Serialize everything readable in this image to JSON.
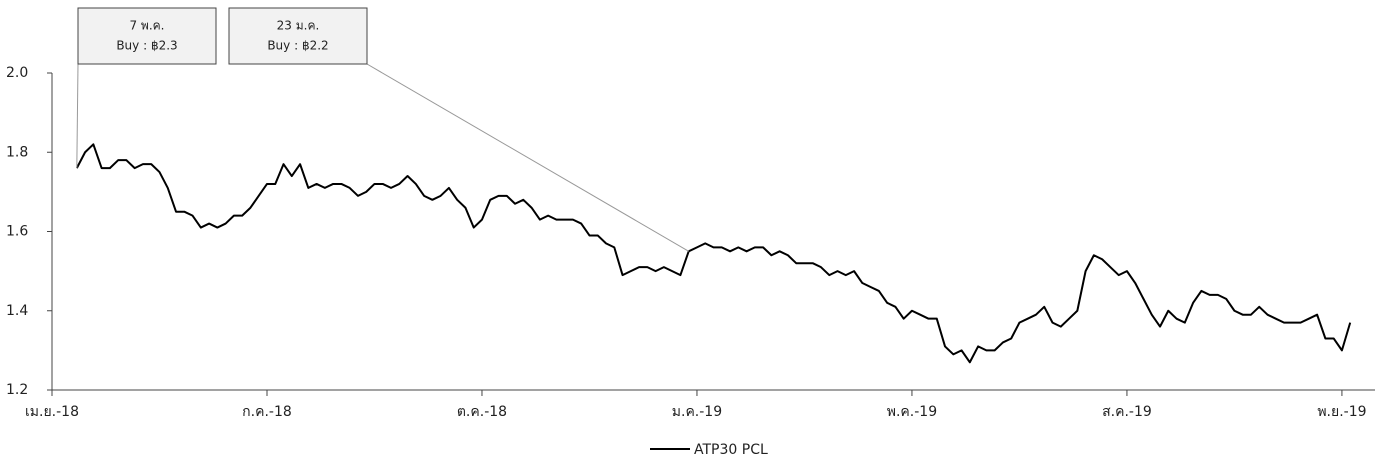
{
  "chart_data": {
    "type": "line",
    "categories": [
      "เม.ย.-18",
      null,
      null,
      null,
      null,
      null,
      null,
      null,
      null,
      null,
      null,
      null,
      null,
      null,
      null,
      null,
      null,
      null,
      null,
      null,
      null,
      null,
      null,
      null,
      null,
      null,
      "ก.ค.-18",
      null,
      null,
      null,
      null,
      null,
      null,
      null,
      null,
      null,
      null,
      null,
      null,
      null,
      null,
      null,
      null,
      null,
      null,
      null,
      null,
      null,
      null,
      null,
      null,
      null,
      "ต.ค.-18",
      null,
      null,
      null,
      null,
      null,
      null,
      null,
      null,
      null,
      null,
      null,
      null,
      null,
      null,
      null,
      null,
      null,
      null,
      null,
      null,
      null,
      null,
      null,
      null,
      null,
      "ม.ค.-19",
      null,
      null,
      null,
      null,
      null,
      null,
      null,
      null,
      null,
      null,
      null,
      null,
      null,
      null,
      null,
      null,
      null,
      null,
      null,
      null,
      null,
      null,
      null,
      null,
      null,
      "พ.ค.-19",
      null,
      null,
      null,
      null,
      null,
      null,
      null,
      null,
      null,
      null,
      null,
      null,
      null,
      null,
      null,
      null,
      null,
      null,
      null,
      null,
      null,
      null,
      null,
      null,
      null,
      "ส.ค.-19",
      null,
      null,
      null,
      null,
      null,
      null,
      null,
      null,
      null,
      null,
      null,
      null,
      null,
      null,
      null,
      null,
      null,
      null,
      null,
      null,
      null,
      null,
      null,
      null,
      null,
      "พ.ย.-19",
      null,
      null,
      null,
      null
    ],
    "series": [
      {
        "name": "ATP30 PCL",
        "color": "#000000",
        "values": [
          null,
          null,
          null,
          1.76,
          1.8,
          1.82,
          1.76,
          1.76,
          1.78,
          1.78,
          1.76,
          1.77,
          1.77,
          1.75,
          1.71,
          1.65,
          1.65,
          1.64,
          1.61,
          1.62,
          1.61,
          1.62,
          1.64,
          1.64,
          1.66,
          1.69,
          1.72,
          1.72,
          1.77,
          1.74,
          1.77,
          1.71,
          1.72,
          1.71,
          1.72,
          1.72,
          1.71,
          1.69,
          1.7,
          1.72,
          1.72,
          1.71,
          1.72,
          1.74,
          1.72,
          1.69,
          1.68,
          1.69,
          1.71,
          1.68,
          1.66,
          1.61,
          1.63,
          1.68,
          1.69,
          1.69,
          1.67,
          1.68,
          1.66,
          1.63,
          1.64,
          1.63,
          1.63,
          1.63,
          1.62,
          1.59,
          1.59,
          1.57,
          1.56,
          1.49,
          1.5,
          1.51,
          1.51,
          1.5,
          1.51,
          1.5,
          1.49,
          1.55,
          1.56,
          1.57,
          1.56,
          1.56,
          1.55,
          1.56,
          1.55,
          1.56,
          1.56,
          1.54,
          1.55,
          1.54,
          1.52,
          1.52,
          1.52,
          1.51,
          1.49,
          1.5,
          1.49,
          1.5,
          1.47,
          1.46,
          1.45,
          1.42,
          1.41,
          1.38,
          1.4,
          1.39,
          1.38,
          1.38,
          1.31,
          1.29,
          1.3,
          1.27,
          1.31,
          1.3,
          1.3,
          1.32,
          1.33,
          1.37,
          1.38,
          1.39,
          1.41,
          1.37,
          1.36,
          1.38,
          1.4,
          1.5,
          1.54,
          1.53,
          1.51,
          1.49,
          1.5,
          1.47,
          1.43,
          1.39,
          1.36,
          1.4,
          1.38,
          1.37,
          1.42,
          1.45,
          1.44,
          1.44,
          1.43,
          1.4,
          1.39,
          1.39,
          1.41,
          1.39,
          1.38,
          1.37,
          1.37,
          1.37,
          1.38,
          1.39,
          1.33,
          1.33,
          1.3,
          1.37,
          null,
          null,
          null
        ]
      }
    ],
    "ylim": [
      1.2,
      2.0
    ],
    "yticks": [
      1.2,
      1.4,
      1.6,
      1.8,
      {
        "value": 2.0,
        "label": "2.0"
      }
    ],
    "grid": false,
    "legend": "bottom",
    "annotations": [
      {
        "title": "7 พ.ค.",
        "text": "Buy : ฿2.3"
      },
      {
        "title": "23 ม.ค.",
        "text": "Buy : ฿2.2"
      }
    ]
  }
}
